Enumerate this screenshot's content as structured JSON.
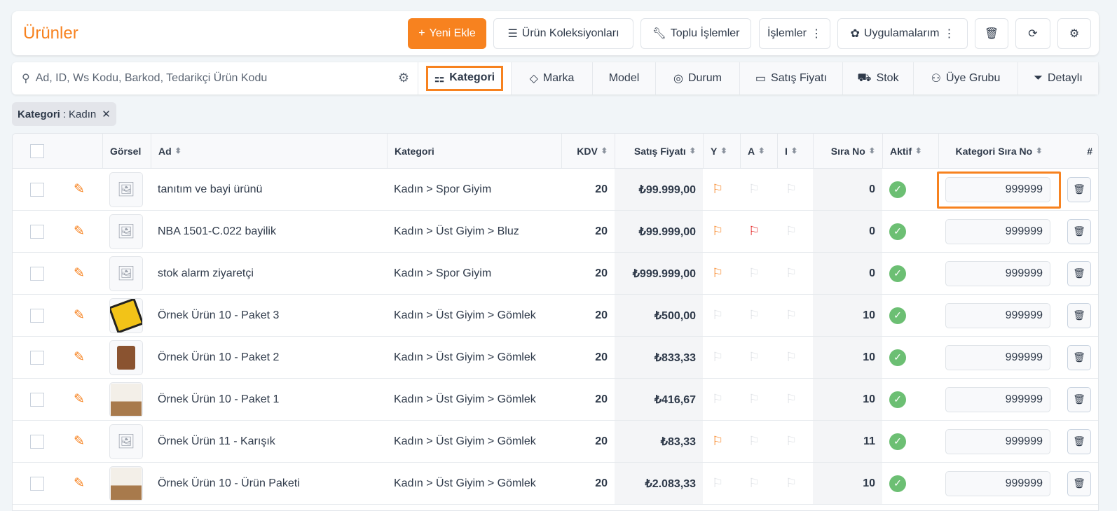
{
  "header": {
    "title": "Ürünler",
    "new_label": "Yeni Ekle",
    "collections_label": "Ürün Koleksiyonları",
    "bulk_label": "Toplu İşlemler",
    "actions_label": "İşlemler",
    "apps_label": "Uygulamalarım"
  },
  "accent": "#f7821f",
  "search": {
    "placeholder": "Ad, ID, Ws Kodu, Barkod, Tedarikçi Ürün Kodu"
  },
  "filters": [
    "Kategori",
    "Marka",
    "Model",
    "Durum",
    "Satış Fiyatı",
    "Stok",
    "Üye Grubu",
    "Detaylı"
  ],
  "chip": {
    "key": "Kategori",
    "value": "Kadın"
  },
  "columns": {
    "image": "Görsel",
    "name": "Ad",
    "category": "Kategori",
    "vat": "KDV",
    "price": "Satış Fiyatı",
    "y": "Y",
    "a": "A",
    "i": "I",
    "order": "Sıra No",
    "active": "Aktif",
    "cat_order": "Kategori Sıra No",
    "hash": "#"
  },
  "rows": [
    {
      "name": "tanıtım ve bayi ürünü",
      "category": "Kadın > Spor Giyim",
      "vat": "20",
      "price": "₺99.999,00",
      "y": "orange",
      "a": "none",
      "i": "none",
      "order": "0",
      "active": true,
      "cat_order": "999999",
      "image": "placeholder"
    },
    {
      "name": "NBA 1501-C.022 bayilik",
      "category": "Kadın > Üst Giyim > Bluz",
      "vat": "20",
      "price": "₺99.999,00",
      "y": "orange",
      "a": "red",
      "i": "none",
      "order": "0",
      "active": true,
      "cat_order": "999999",
      "image": "placeholder"
    },
    {
      "name": "stok alarm ziyaretçi",
      "category": "Kadın > Spor Giyim",
      "vat": "20",
      "price": "₺999.999,00",
      "y": "orange",
      "a": "none",
      "i": "none",
      "order": "0",
      "active": true,
      "cat_order": "999999",
      "image": "placeholder"
    },
    {
      "name": "Örnek Ürün 10 - Paket 3",
      "category": "Kadın > Üst Giyim > Gömlek",
      "vat": "20",
      "price": "₺500,00",
      "y": "none",
      "a": "none",
      "i": "none",
      "order": "10",
      "active": true,
      "cat_order": "999999",
      "image": "photo-yellow"
    },
    {
      "name": "Örnek Ürün 10 - Paket 2",
      "category": "Kadın > Üst Giyim > Gömlek",
      "vat": "20",
      "price": "₺833,33",
      "y": "none",
      "a": "none",
      "i": "none",
      "order": "10",
      "active": true,
      "cat_order": "999999",
      "image": "photo-chair"
    },
    {
      "name": "Örnek Ürün 10 - Paket 1",
      "category": "Kadın > Üst Giyim > Gömlek",
      "vat": "20",
      "price": "₺416,67",
      "y": "none",
      "a": "none",
      "i": "none",
      "order": "10",
      "active": true,
      "cat_order": "999999",
      "image": "photo-bed"
    },
    {
      "name": "Örnek Ürün 11 - Karışık",
      "category": "Kadın > Üst Giyim > Gömlek",
      "vat": "20",
      "price": "₺83,33",
      "y": "orange",
      "a": "none",
      "i": "none",
      "order": "11",
      "active": true,
      "cat_order": "999999",
      "image": "placeholder"
    },
    {
      "name": "Örnek Ürün 10 - Ürün Paketi",
      "category": "Kadın > Üst Giyim > Gömlek",
      "vat": "20",
      "price": "₺2.083,33",
      "y": "none",
      "a": "none",
      "i": "none",
      "order": "10",
      "active": true,
      "cat_order": "999999",
      "image": "photo-bed"
    }
  ]
}
